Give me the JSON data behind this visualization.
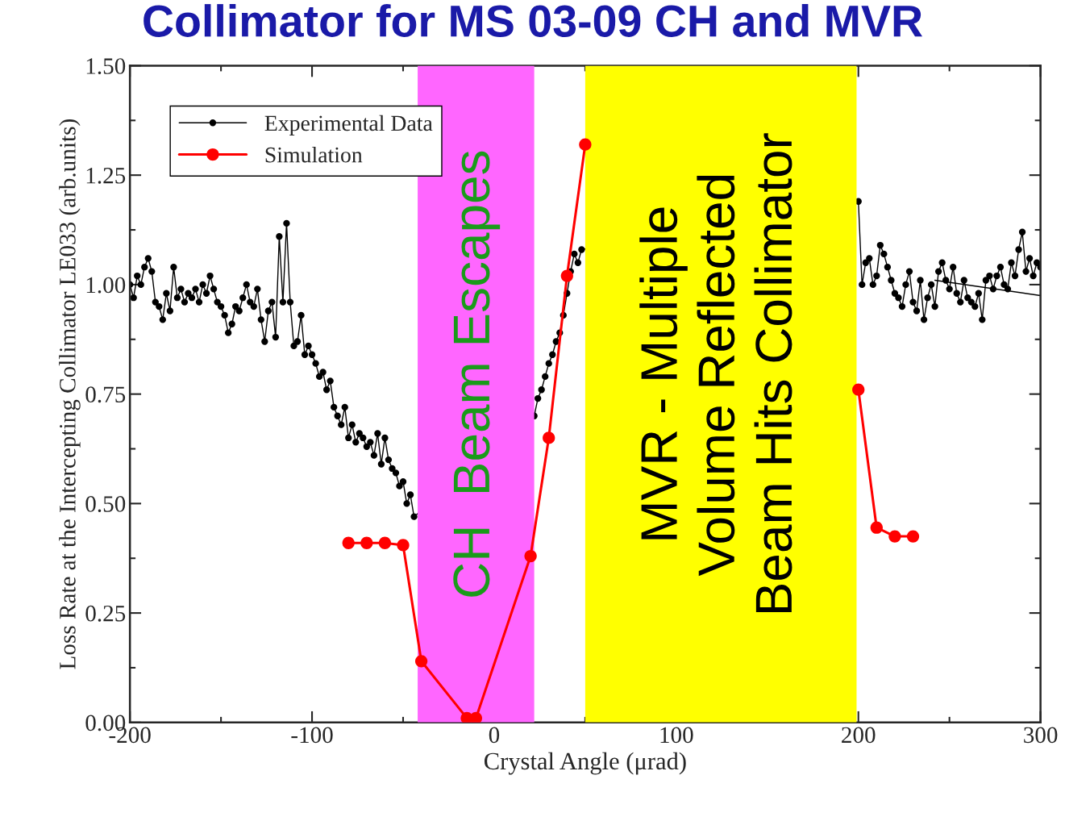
{
  "chart_data": {
    "type": "line",
    "title": "Collimator for MS 03-09 CH and MVR",
    "xlabel": "Crystal Angle (μrad)",
    "ylabel": "Loss Rate at the Intercepting Collimator LE033 (arb.units)",
    "xlim": [
      -200,
      300
    ],
    "ylim": [
      0,
      1.5
    ],
    "xticks": [
      -200,
      {
        "value": -150,
        "label": null
      },
      -100,
      {
        "value": -50,
        "label": null
      },
      0,
      {
        "value": 50,
        "label": null
      },
      100,
      {
        "value": 150,
        "label": null
      },
      200,
      {
        "value": 250,
        "label": null
      },
      300
    ],
    "yticks": [
      "0.00",
      {
        "value": 0.125,
        "label": null
      },
      {
        "value": 0.25,
        "label": "0.25"
      },
      {
        "value": 0.375,
        "label": null
      },
      {
        "value": 0.5,
        "label": "0.50"
      },
      {
        "value": 0.625,
        "label": null
      },
      {
        "value": 0.75,
        "label": "0.75"
      },
      {
        "value": 0.875,
        "label": null
      },
      {
        "value": 1,
        "label": "1.00"
      },
      {
        "value": 1.125,
        "label": null
      },
      {
        "value": 1.25,
        "label": "1.25"
      },
      {
        "value": 1.375,
        "label": null
      },
      {
        "value": 1.5,
        "label": "1.50"
      }
    ],
    "marker": "circle",
    "line_style": "solid",
    "grid": false,
    "legend": "top left",
    "series": [
      {
        "name": "Experimental Data",
        "color": "#000000",
        "x": [
          -200,
          -198,
          -196,
          -194,
          -192,
          -190,
          -188,
          -186,
          -184,
          -182,
          -180,
          -178,
          -176,
          -174,
          -172,
          -170,
          -168,
          -166,
          -164,
          -162,
          -160,
          -158,
          -156,
          -154,
          -152,
          -150,
          -148,
          -146,
          -144,
          -142,
          -140,
          -138,
          -136,
          -134,
          -132,
          -130,
          -128,
          -126,
          -124,
          -122,
          -120,
          -118,
          -116,
          -114,
          -112,
          -110,
          -108,
          -106,
          -104,
          -102,
          -100,
          -98,
          -96,
          -94,
          -92,
          -90,
          -88,
          -86,
          -84,
          -82,
          -80,
          -78,
          -76,
          -74,
          -72,
          -70,
          -68,
          -66,
          -64,
          -62,
          -60,
          -58,
          -56,
          -54,
          -52,
          -50,
          -48,
          -46,
          -44,
          22,
          24,
          26,
          28,
          30,
          32,
          34,
          36,
          38,
          40,
          42,
          44,
          46,
          48,
          200,
          202,
          204,
          206,
          208,
          210,
          212,
          214,
          216,
          218,
          220,
          222,
          224,
          226,
          228,
          230,
          232,
          234,
          236,
          238,
          240,
          242,
          244,
          246,
          248,
          250,
          252,
          254,
          256,
          258,
          260,
          262,
          264,
          266,
          268,
          270,
          272,
          274,
          276,
          278,
          280,
          282,
          284,
          286,
          288,
          290,
          292,
          294,
          296,
          298,
          300
        ],
        "values": [
          1.0,
          0.97,
          1.02,
          1.0,
          1.04,
          1.06,
          1.03,
          0.96,
          0.95,
          0.92,
          0.98,
          0.94,
          1.04,
          0.97,
          0.99,
          0.96,
          0.98,
          0.97,
          0.99,
          0.96,
          1.0,
          0.98,
          1.02,
          0.99,
          0.96,
          0.95,
          0.93,
          0.89,
          0.91,
          0.95,
          0.94,
          0.97,
          1.0,
          0.96,
          0.95,
          0.99,
          0.92,
          0.87,
          0.94,
          0.96,
          0.88,
          1.11,
          0.96,
          1.14,
          0.96,
          0.86,
          0.87,
          0.93,
          0.84,
          0.86,
          0.84,
          0.82,
          0.79,
          0.8,
          0.76,
          0.78,
          0.72,
          0.7,
          0.68,
          0.72,
          0.65,
          0.68,
          0.64,
          0.66,
          0.65,
          0.63,
          0.64,
          0.61,
          0.66,
          0.59,
          0.65,
          0.6,
          0.58,
          0.57,
          0.54,
          0.55,
          0.5,
          0.52,
          0.47,
          0.7,
          0.74,
          0.76,
          0.79,
          0.82,
          0.84,
          0.87,
          0.89,
          0.93,
          0.98,
          1.03,
          1.07,
          1.05,
          1.08,
          1.19,
          1.0,
          1.05,
          1.06,
          1.0,
          1.02,
          1.09,
          1.07,
          1.04,
          1.01,
          0.98,
          0.97,
          0.95,
          1.0,
          1.03,
          0.96,
          0.94,
          1.01,
          0.92,
          0.97,
          1.0,
          0.95,
          1.03,
          1.05,
          1.01,
          0.99,
          1.04,
          0.98,
          0.96,
          1.01,
          0.97,
          0.96,
          0.95,
          0.98,
          0.92,
          1.01,
          1.02,
          0.99,
          1.02,
          1.04,
          1.0,
          0.99,
          1.05,
          1.02,
          1.08,
          1.12,
          1.03,
          1.06,
          1.02,
          1.05,
          1.04
        ]
      },
      {
        "name": "Simulation",
        "color": "#ff0000",
        "x": [
          -80,
          -70,
          -60,
          -50,
          -40,
          -15,
          -10,
          20,
          30,
          40,
          50,
          100,
          200,
          210,
          220,
          230
        ],
        "values": [
          0.41,
          0.41,
          0.41,
          0.405,
          0.14,
          0.01,
          0.01,
          0.38,
          0.65,
          1.02,
          1.32,
          null,
          0.76,
          0.445,
          0.425,
          0.425
        ]
      },
      {
        "type": "line",
        "marker": "none",
        "color": "#000000",
        "x": [
          242,
          300
        ],
        "values": [
          1.01,
          0.975
        ]
      }
    ],
    "bands": [
      {
        "axis": "x",
        "from": -42,
        "to": 22,
        "label": "CH  Beam Escapes",
        "color": "#ff66ff"
      },
      {
        "axis": "x",
        "from": 50,
        "to": 199,
        "label": "MVR - Multiple\nVolume Reflected\nBeam Hits Collimator",
        "color": "#ffff00"
      }
    ]
  }
}
